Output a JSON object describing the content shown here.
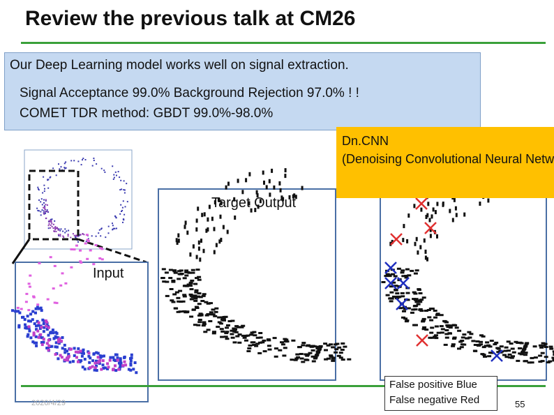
{
  "slide": {
    "title": "Review the previous talk at CM26",
    "intro": "Our Deep Learning model works well on signal extraction.",
    "acceptance": "Signal Acceptance 99.0% Background Rejection 97.0% ! !",
    "comet": "COMET TDR method: GBDT 99.0%-98.0%",
    "dncnn_line1": "Dn.CNN",
    "dncnn_line2": "(Denoising Convolutional Neural Network)",
    "target_label": "Target Output",
    "input_label": "Input",
    "false_positive": "False positive Blue",
    "false_negative": "False negative Red",
    "page_number": "55",
    "date_stamp": "2020/4/29"
  },
  "colors": {
    "accent_green": "#3aa03a",
    "box_blue": "#c5d9f1",
    "box_orange": "#ffc000",
    "panel_border": "#4a6fa5",
    "false_positive_marker": "#1f2fbf",
    "false_negative_marker": "#e03030"
  }
}
